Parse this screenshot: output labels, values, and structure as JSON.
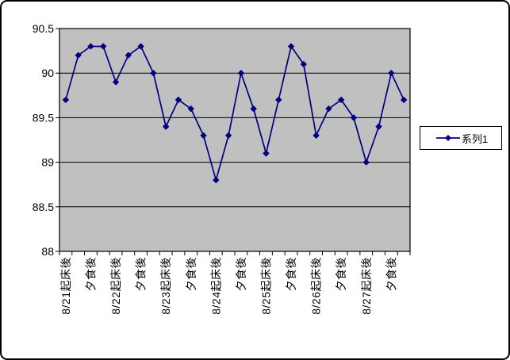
{
  "window": {
    "background": "#FFFFFF",
    "border_color": "#000000"
  },
  "chart_data": {
    "type": "line",
    "title": "",
    "xlabel": "",
    "ylabel": "",
    "n_points": 28,
    "x_labels": [
      "8/21起床後",
      "夕食後",
      "8/22起床後",
      "夕食後",
      "8/23起床後",
      "夕食後",
      "8/24起床後",
      "夕食後",
      "8/25起床後",
      "夕食後",
      "8/26起床後",
      "夕食後",
      "8/27起床後",
      "夕食後"
    ],
    "x_label_interval": 2,
    "series": [
      {
        "name": "系列1",
        "color": "#000080",
        "marker": "diamond",
        "values": [
          89.7,
          90.2,
          90.3,
          90.3,
          89.9,
          90.2,
          90.3,
          90.0,
          89.4,
          89.7,
          89.6,
          89.3,
          88.8,
          89.3,
          90.0,
          89.6,
          89.1,
          89.7,
          90.3,
          90.1,
          89.3,
          89.6,
          89.7,
          89.5,
          89.0,
          89.4,
          90.0,
          89.7
        ]
      }
    ],
    "ylim": [
      88,
      90.5
    ],
    "y_tick_values": [
      90.5,
      90,
      89.5,
      89,
      88.5,
      88
    ],
    "y_tick_labels": [
      "90.5",
      "90",
      "89.5",
      "89",
      "88.5",
      "88"
    ],
    "grid": "horizontal",
    "gridline_color": "#000000",
    "plot_bg": "#C0C0C0",
    "axis_color": "#000000",
    "legend_position": "right"
  },
  "legend": {
    "label": "系列1"
  }
}
